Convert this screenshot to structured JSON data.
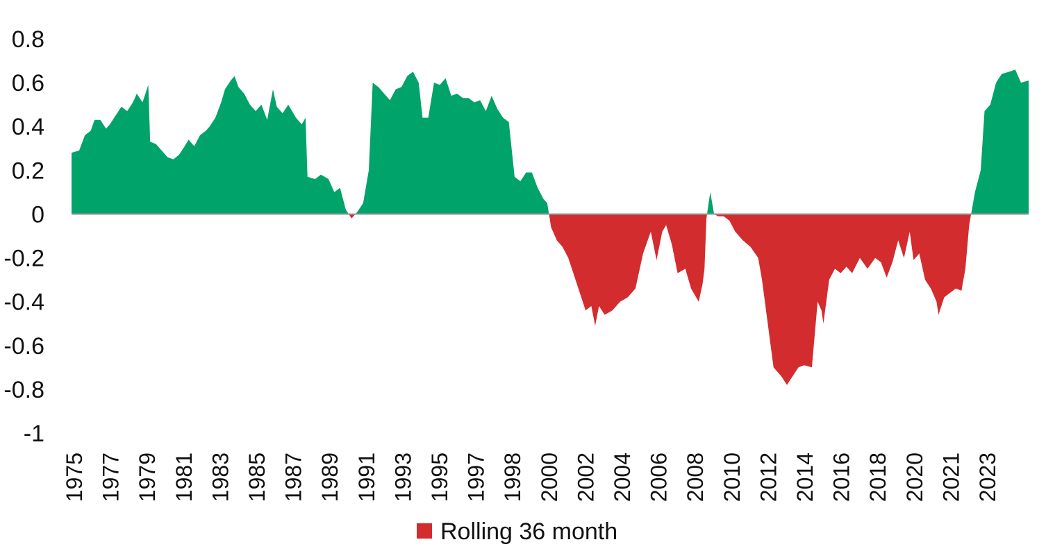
{
  "chart_data": {
    "type": "area",
    "title": "",
    "xlabel": "",
    "ylabel": "",
    "x_range": [
      1975.0,
      2024.9
    ],
    "ylim": [
      -1,
      0.8
    ],
    "y_ticks": [
      "0.8",
      "0.6",
      "0.4",
      "0.2",
      "0",
      "-0.2",
      "-0.4",
      "-0.6",
      "-0.8",
      "-1"
    ],
    "y_tick_values": [
      0.8,
      0.6,
      0.4,
      0.2,
      0,
      -0.2,
      -0.4,
      -0.6,
      -0.8,
      -1
    ],
    "x_ticks": [
      "1975",
      "1977",
      "1979",
      "1981",
      "1983",
      "1985",
      "1987",
      "1989",
      "1991",
      "1993",
      "1995",
      "1997",
      "1998",
      "2000",
      "2002",
      "2004",
      "2006",
      "2008",
      "2010",
      "2012",
      "2014",
      "2016",
      "2018",
      "2020",
      "2021",
      "2023"
    ],
    "grid": false,
    "legend_position": "bottom",
    "series": [
      {
        "name": "Rolling 36 month",
        "positive_color": "#00a36a",
        "negative_color": "#d22c2f",
        "points": [
          [
            1975.0,
            0.28
          ],
          [
            1975.4,
            0.29
          ],
          [
            1975.7,
            0.36
          ],
          [
            1976.0,
            0.38
          ],
          [
            1976.2,
            0.43
          ],
          [
            1976.5,
            0.43
          ],
          [
            1976.8,
            0.39
          ],
          [
            1977.0,
            0.41
          ],
          [
            1977.3,
            0.45
          ],
          [
            1977.6,
            0.49
          ],
          [
            1977.9,
            0.47
          ],
          [
            1978.2,
            0.51
          ],
          [
            1978.4,
            0.55
          ],
          [
            1978.7,
            0.51
          ],
          [
            1979.0,
            0.59
          ],
          [
            1979.1,
            0.33
          ],
          [
            1979.4,
            0.32
          ],
          [
            1979.7,
            0.29
          ],
          [
            1980.0,
            0.26
          ],
          [
            1980.3,
            0.25
          ],
          [
            1980.6,
            0.27
          ],
          [
            1980.9,
            0.31
          ],
          [
            1981.1,
            0.34
          ],
          [
            1981.4,
            0.31
          ],
          [
            1981.7,
            0.36
          ],
          [
            1982.0,
            0.38
          ],
          [
            1982.2,
            0.4
          ],
          [
            1982.5,
            0.44
          ],
          [
            1982.8,
            0.51
          ],
          [
            1983.0,
            0.57
          ],
          [
            1983.3,
            0.61
          ],
          [
            1983.5,
            0.63
          ],
          [
            1983.7,
            0.58
          ],
          [
            1984.0,
            0.55
          ],
          [
            1984.3,
            0.5
          ],
          [
            1984.6,
            0.47
          ],
          [
            1984.9,
            0.5
          ],
          [
            1985.2,
            0.43
          ],
          [
            1985.5,
            0.57
          ],
          [
            1985.7,
            0.49
          ],
          [
            1986.0,
            0.46
          ],
          [
            1986.3,
            0.5
          ],
          [
            1986.7,
            0.44
          ],
          [
            1987.0,
            0.41
          ],
          [
            1987.2,
            0.44
          ],
          [
            1987.3,
            0.17
          ],
          [
            1987.7,
            0.16
          ],
          [
            1988.0,
            0.18
          ],
          [
            1988.4,
            0.16
          ],
          [
            1988.7,
            0.1
          ],
          [
            1989.0,
            0.12
          ],
          [
            1989.3,
            0.02
          ],
          [
            1989.6,
            -0.02
          ],
          [
            1989.9,
            0.01
          ],
          [
            1990.2,
            0.05
          ],
          [
            1990.5,
            0.2
          ],
          [
            1990.7,
            0.6
          ],
          [
            1991.0,
            0.58
          ],
          [
            1991.3,
            0.55
          ],
          [
            1991.6,
            0.52
          ],
          [
            1991.9,
            0.57
          ],
          [
            1992.2,
            0.58
          ],
          [
            1992.5,
            0.63
          ],
          [
            1992.8,
            0.65
          ],
          [
            1993.1,
            0.6
          ],
          [
            1993.3,
            0.44
          ],
          [
            1993.6,
            0.44
          ],
          [
            1993.9,
            0.6
          ],
          [
            1994.2,
            0.59
          ],
          [
            1994.5,
            0.62
          ],
          [
            1994.8,
            0.54
          ],
          [
            1995.1,
            0.55
          ],
          [
            1995.4,
            0.53
          ],
          [
            1995.7,
            0.53
          ],
          [
            1996.0,
            0.51
          ],
          [
            1996.3,
            0.52
          ],
          [
            1996.6,
            0.47
          ],
          [
            1996.9,
            0.54
          ],
          [
            1997.2,
            0.48
          ],
          [
            1997.5,
            0.44
          ],
          [
            1997.8,
            0.42
          ],
          [
            1998.1,
            0.17
          ],
          [
            1998.4,
            0.15
          ],
          [
            1998.7,
            0.19
          ],
          [
            1999.0,
            0.19
          ],
          [
            1999.3,
            0.12
          ],
          [
            1999.6,
            0.07
          ],
          [
            1999.8,
            0.05
          ],
          [
            2000.0,
            -0.06
          ],
          [
            2000.3,
            -0.12
          ],
          [
            2000.6,
            -0.15
          ],
          [
            2000.9,
            -0.2
          ],
          [
            2001.2,
            -0.28
          ],
          [
            2001.5,
            -0.36
          ],
          [
            2001.8,
            -0.44
          ],
          [
            2002.1,
            -0.42
          ],
          [
            2002.3,
            -0.51
          ],
          [
            2002.5,
            -0.42
          ],
          [
            2002.8,
            -0.46
          ],
          [
            2003.2,
            -0.44
          ],
          [
            2003.6,
            -0.4
          ],
          [
            2004.0,
            -0.38
          ],
          [
            2004.4,
            -0.34
          ],
          [
            2004.8,
            -0.18
          ],
          [
            2005.2,
            -0.08
          ],
          [
            2005.5,
            -0.21
          ],
          [
            2005.8,
            -0.08
          ],
          [
            2006.0,
            -0.05
          ],
          [
            2006.3,
            -0.14
          ],
          [
            2006.6,
            -0.27
          ],
          [
            2007.0,
            -0.25
          ],
          [
            2007.3,
            -0.34
          ],
          [
            2007.7,
            -0.4
          ],
          [
            2007.9,
            -0.32
          ],
          [
            2008.0,
            -0.25
          ],
          [
            2008.1,
            -0.02
          ],
          [
            2008.3,
            0.1
          ],
          [
            2008.5,
            0.0
          ],
          [
            2008.7,
            -0.01
          ],
          [
            2009.0,
            -0.01
          ],
          [
            2009.3,
            -0.03
          ],
          [
            2009.6,
            -0.08
          ],
          [
            2010.0,
            -0.12
          ],
          [
            2010.4,
            -0.15
          ],
          [
            2010.8,
            -0.2
          ],
          [
            2011.0,
            -0.3
          ],
          [
            2011.3,
            -0.5
          ],
          [
            2011.6,
            -0.7
          ],
          [
            2012.0,
            -0.74
          ],
          [
            2012.3,
            -0.78
          ],
          [
            2012.6,
            -0.74
          ],
          [
            2012.9,
            -0.7
          ],
          [
            2013.2,
            -0.69
          ],
          [
            2013.6,
            -0.7
          ],
          [
            2013.9,
            -0.4
          ],
          [
            2014.1,
            -0.44
          ],
          [
            2014.2,
            -0.5
          ],
          [
            2014.5,
            -0.3
          ],
          [
            2014.8,
            -0.25
          ],
          [
            2015.1,
            -0.27
          ],
          [
            2015.4,
            -0.24
          ],
          [
            2015.7,
            -0.27
          ],
          [
            2016.1,
            -0.2
          ],
          [
            2016.5,
            -0.25
          ],
          [
            2016.9,
            -0.2
          ],
          [
            2017.2,
            -0.22
          ],
          [
            2017.5,
            -0.29
          ],
          [
            2017.8,
            -0.22
          ],
          [
            2018.1,
            -0.12
          ],
          [
            2018.4,
            -0.2
          ],
          [
            2018.7,
            -0.08
          ],
          [
            2018.9,
            -0.21
          ],
          [
            2019.2,
            -0.18
          ],
          [
            2019.5,
            -0.3
          ],
          [
            2019.8,
            -0.34
          ],
          [
            2020.1,
            -0.4
          ],
          [
            2020.2,
            -0.46
          ],
          [
            2020.5,
            -0.38
          ],
          [
            2020.8,
            -0.36
          ],
          [
            2021.1,
            -0.34
          ],
          [
            2021.4,
            -0.35
          ],
          [
            2021.6,
            -0.25
          ],
          [
            2021.8,
            -0.05
          ],
          [
            2021.9,
            0.0
          ],
          [
            2022.1,
            0.1
          ],
          [
            2022.4,
            0.2
          ],
          [
            2022.6,
            0.47
          ],
          [
            2022.9,
            0.5
          ],
          [
            2023.2,
            0.6
          ],
          [
            2023.5,
            0.64
          ],
          [
            2023.9,
            0.65
          ],
          [
            2024.2,
            0.66
          ],
          [
            2024.5,
            0.6
          ],
          [
            2024.9,
            0.61
          ]
        ]
      }
    ]
  }
}
